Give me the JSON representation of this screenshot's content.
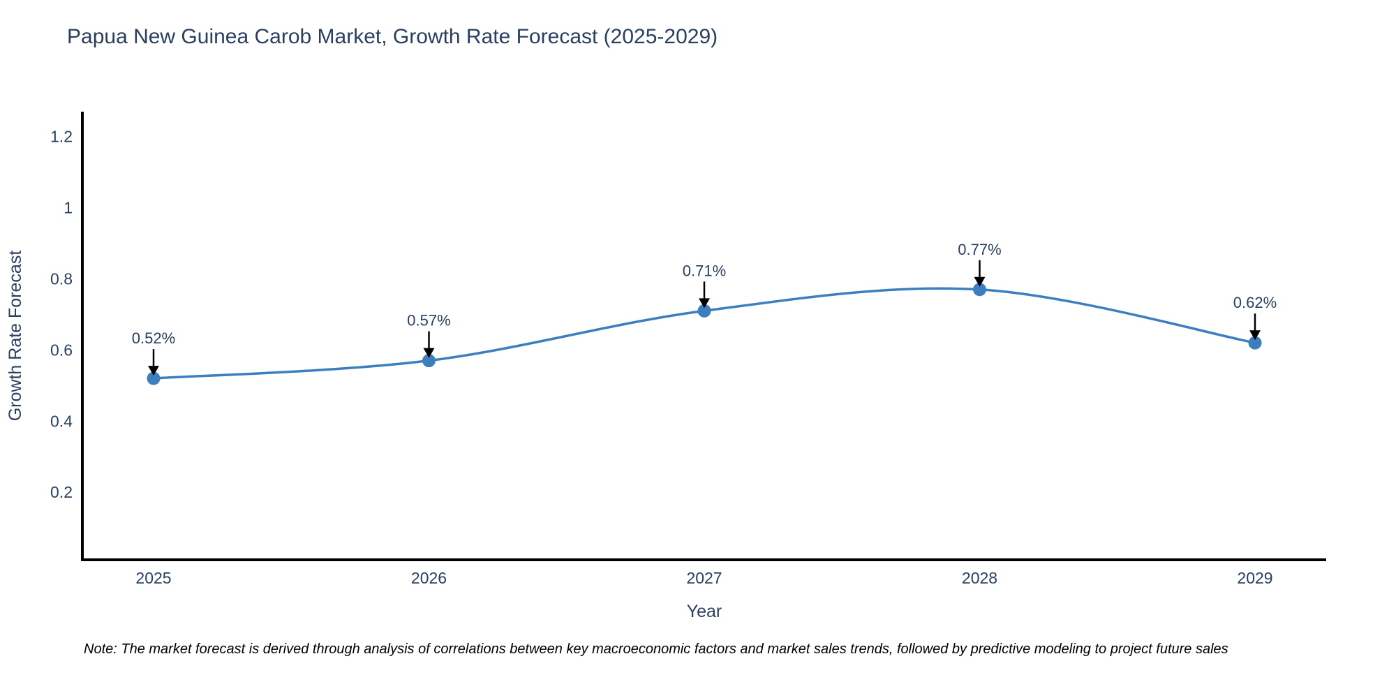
{
  "chart_data": {
    "type": "line",
    "title": "Papua New Guinea Carob Market, Growth Rate Forecast (2025-2029)",
    "x": [
      "2025",
      "2026",
      "2027",
      "2028",
      "2029"
    ],
    "series": [
      {
        "name": "Growth Rate Forecast",
        "values": [
          0.52,
          0.57,
          0.71,
          0.77,
          0.62
        ]
      }
    ],
    "point_labels": [
      "0.52%",
      "0.57%",
      "0.71%",
      "0.77%",
      "0.62%"
    ],
    "xlabel": "Year",
    "ylabel": "Growth Rate Forecast",
    "yticks": [
      "0.2",
      "0.4",
      "0.6",
      "0.8",
      "1",
      "1.2"
    ],
    "ytick_values": [
      0.2,
      0.4,
      0.6,
      0.8,
      1.0,
      1.2
    ],
    "ylim": [
      0.01,
      1.27
    ],
    "line_shape": "spline",
    "grid": false,
    "legend_position": "none",
    "colors": {
      "line": "#3d7ebf",
      "marker": "#3d7ebf",
      "axis": "#000000",
      "text": "#2a3f5f",
      "annotation_arrow": "#000000",
      "note_text": "#000000"
    },
    "note": "Note: The market forecast is derived through analysis of correlations between key macroeconomic factors and market sales trends, followed by predictive modeling to project future sales"
  }
}
